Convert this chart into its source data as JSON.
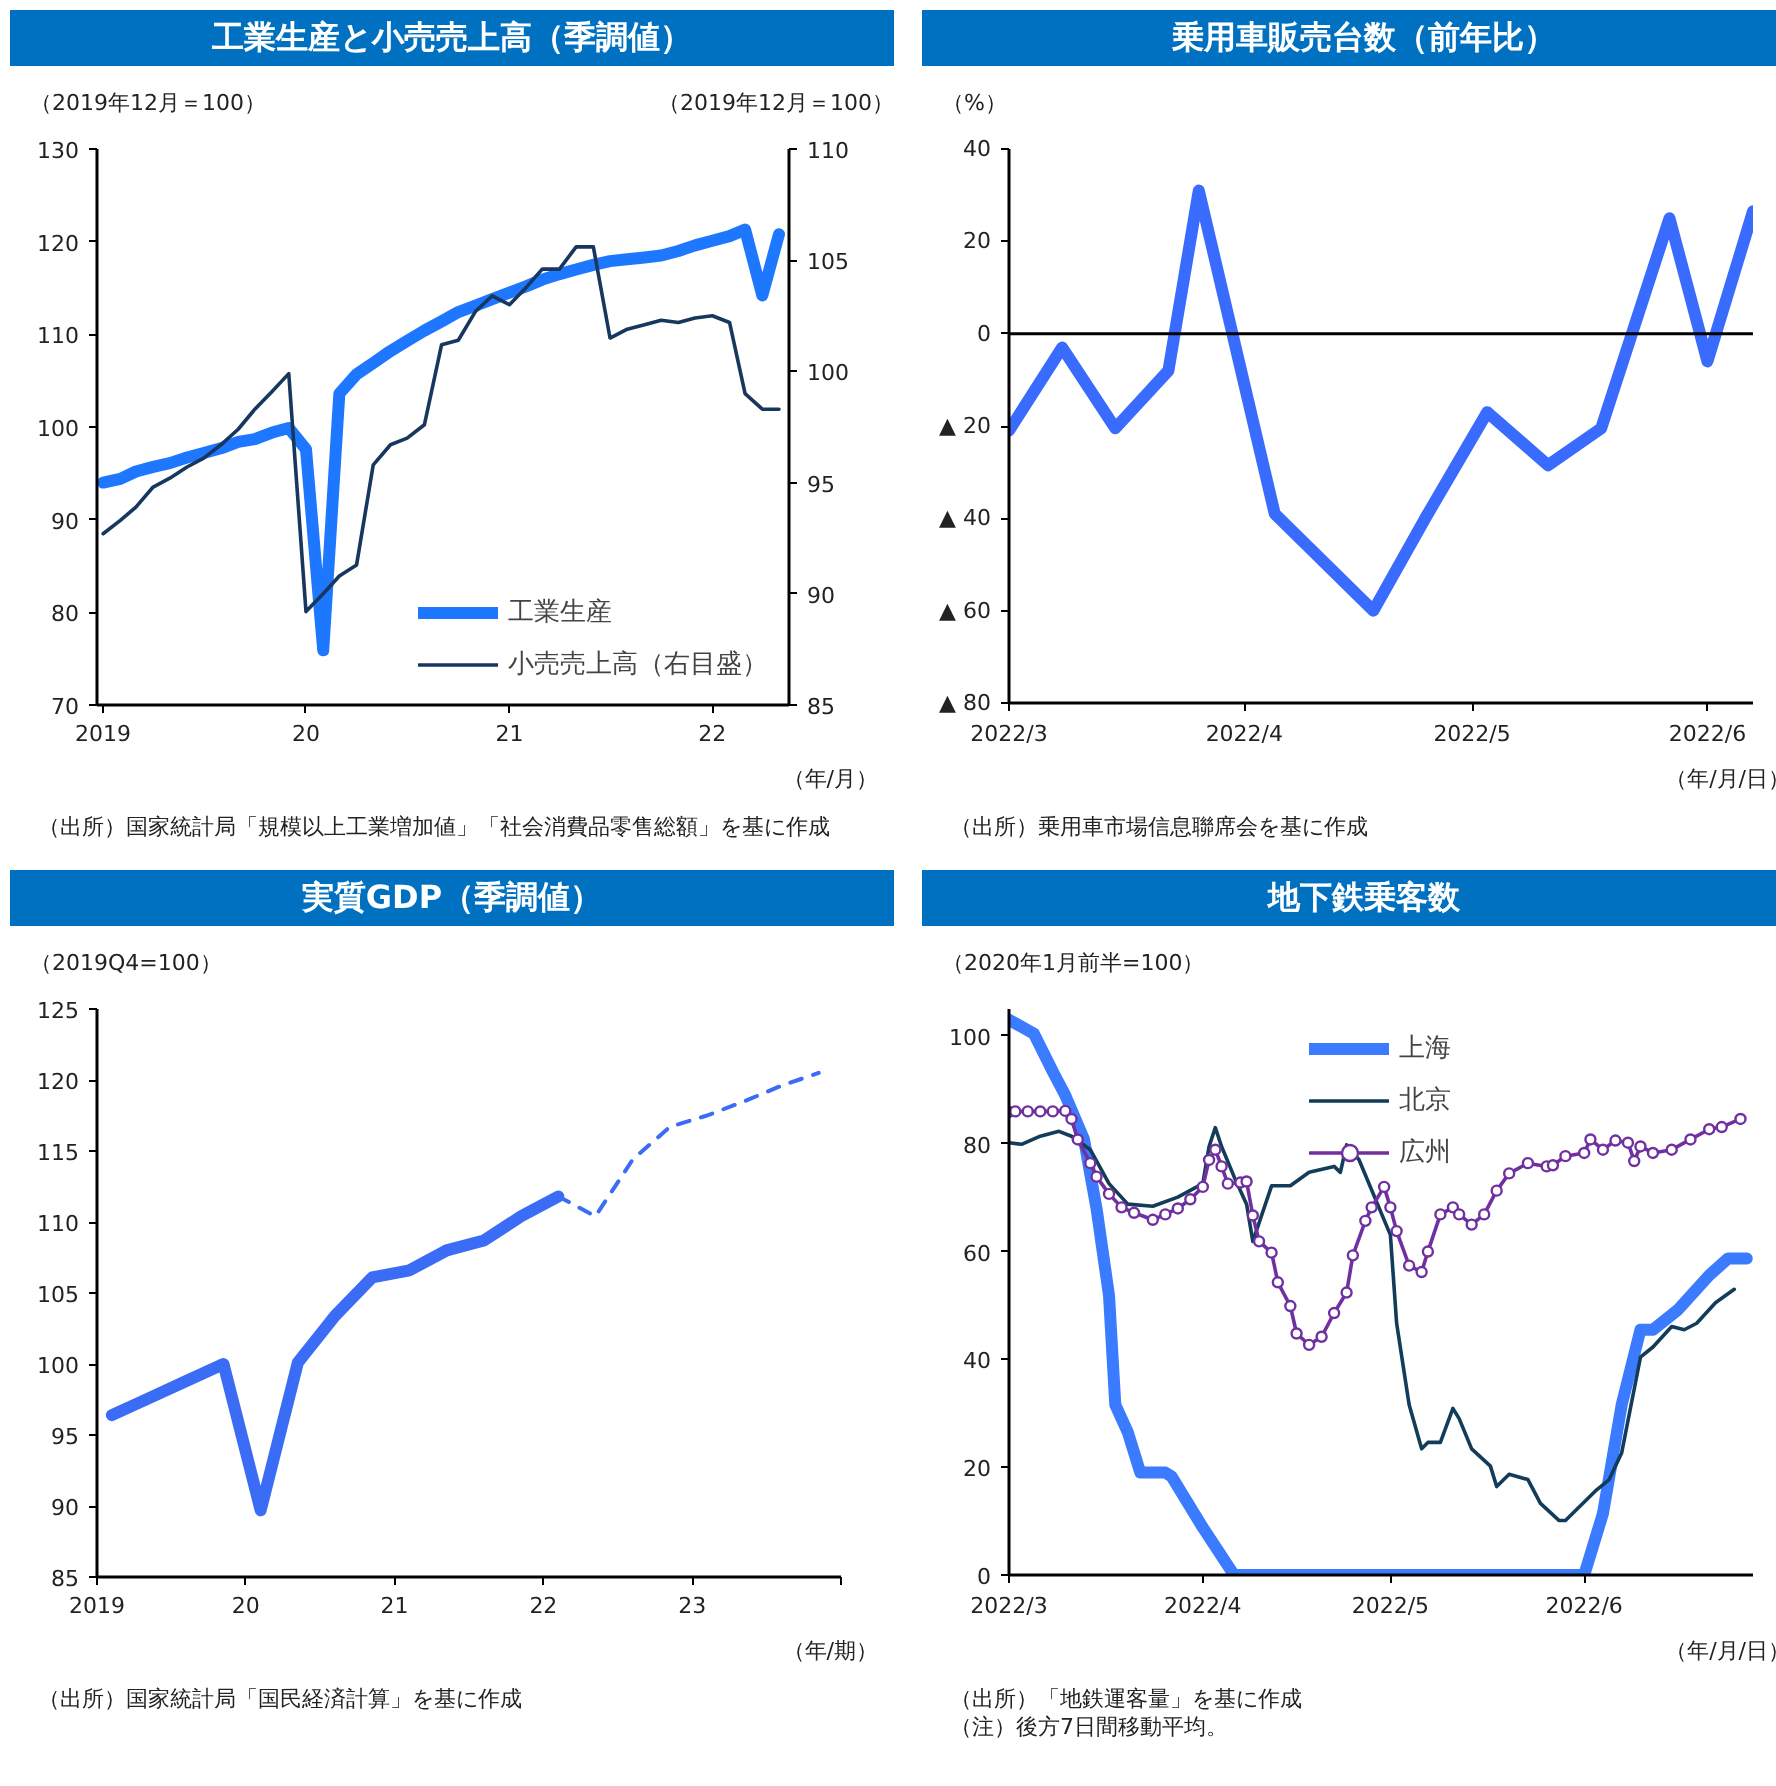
{
  "chart_data": [
    {
      "type": "line",
      "title": "工業生産と小売売上高（季調値）",
      "ylabel": "（2019年12月＝100）",
      "y2label": "（2019年12月＝100）",
      "xlabel": "（年/月）",
      "annotations": [
        "（出所）国家統計局「規模以上工業増加値」「社会消費品零售総額」を基に作成"
      ],
      "x": [
        "2019-01",
        "2019-02",
        "2019-03",
        "2019-04",
        "2019-05",
        "2019-06",
        "2019-07",
        "2019-08",
        "2019-09",
        "2019-10",
        "2019-11",
        "2019-12",
        "2020-01",
        "2020-02",
        "2020-03",
        "2020-04",
        "2020-05",
        "2020-06",
        "2020-07",
        "2020-08",
        "2020-09",
        "2020-10",
        "2020-11",
        "2020-12",
        "2021-01",
        "2021-02",
        "2021-03",
        "2021-04",
        "2021-05",
        "2021-06",
        "2021-07",
        "2021-08",
        "2021-09",
        "2021-10",
        "2021-11",
        "2021-12",
        "2022-01",
        "2022-02",
        "2022-03",
        "2022-04",
        "2022-05"
      ],
      "series": [
        {
          "name": "工業生産",
          "color": "#1e78ff",
          "values": [
            94.0,
            94.4,
            95.2,
            95.7,
            96.1,
            96.7,
            97.2,
            97.7,
            98.4,
            98.7,
            99.4,
            99.9,
            97.6,
            75.9,
            103.6,
            105.7,
            106.9,
            108.2,
            109.3,
            110.4,
            111.4,
            112.4,
            113.1,
            113.8,
            114.5,
            115.2,
            115.9,
            116.5,
            117.0,
            117.5,
            117.9,
            118.1,
            118.3,
            118.5,
            119.0,
            119.6,
            120.1,
            120.6,
            121.3,
            114.2,
            120.8
          ]
        },
        {
          "name": "小売売上高（右目盛）",
          "color": "#17375e",
          "axis": "y2",
          "values": [
            92.7,
            93.3,
            93.9,
            94.8,
            95.2,
            95.7,
            96.1,
            96.7,
            97.4,
            98.3,
            99.1,
            99.9,
            89.2,
            90.0,
            90.8,
            91.3,
            95.8,
            96.7,
            97.0,
            97.6,
            101.2,
            101.4,
            102.7,
            103.4,
            103.0,
            103.8,
            104.6,
            104.6,
            105.6,
            105.6,
            101.5,
            101.9,
            102.1,
            102.3,
            102.2,
            102.4,
            102.5,
            102.2,
            99.0,
            98.3,
            98.3
          ]
        }
      ],
      "xlim": [
        "2018-12-21",
        "2022-05-19"
      ],
      "xticks": [
        {
          "value": "2019-01",
          "label": "2019"
        },
        {
          "value": "2020-01",
          "label": "20"
        },
        {
          "value": "2021-01",
          "label": "21"
        },
        {
          "value": "2022-01",
          "label": "22"
        }
      ],
      "ylim": [
        70,
        130
      ],
      "yticks": [
        70,
        80,
        90,
        100,
        110,
        120,
        130
      ],
      "y2lim": [
        85,
        110
      ],
      "y2ticks": [
        85,
        90,
        95,
        100,
        105,
        110
      ],
      "grid": false,
      "legend": "bottom right"
    },
    {
      "type": "line",
      "title": "乗用車販売台数（前年比）",
      "ylabel": "（%）",
      "xlabel": "（年/月/日）",
      "annotations": [
        "（出所）乗用車市場信息聯席会を基に作成"
      ],
      "x": [
        "2022-03-01",
        "2022-03-08",
        "2022-03-15",
        "2022-03-22",
        "2022-03-26",
        "2022-04-05",
        "2022-04-18",
        "2022-04-25",
        "2022-05-03",
        "2022-05-11",
        "2022-05-18",
        "2022-05-27",
        "2022-06-01",
        "2022-06-07"
      ],
      "series": [
        {
          "color": "#3a6bff",
          "values": [
            -21,
            -3,
            -20.5,
            -8,
            31,
            -39,
            -60,
            -39.5,
            -17,
            -28.5,
            -20.5,
            25,
            -6,
            26.5
          ]
        }
      ],
      "xlim": [
        "2022-03-01",
        "2022-06-07"
      ],
      "xticks": [
        {
          "value": "2022-03-01",
          "label": "2022/3"
        },
        {
          "value": "2022-04-01",
          "label": "2022/4"
        },
        {
          "value": "2022-05-01",
          "label": "2022/5"
        },
        {
          "value": "2022-06-01",
          "label": "2022/6"
        }
      ],
      "ylim": [
        -80,
        40
      ],
      "yticks": [
        {
          "value": -80,
          "label": "▲ 80"
        },
        {
          "value": -60,
          "label": "▲ 60"
        },
        {
          "value": -40,
          "label": "▲ 40"
        },
        {
          "value": -20,
          "label": "▲ 20"
        },
        0,
        20,
        40
      ],
      "ref_lines": [
        {
          "axis": "y",
          "value": 0,
          "color": "#000000"
        }
      ],
      "grid": false
    },
    {
      "type": "line",
      "title": "実質GDP（季調値）",
      "ylabel": "（2019Q4=100）",
      "xlabel": "（年/期）",
      "annotations": [
        "（出所）国家統計局「国民経済計算」を基に作成"
      ],
      "series": [
        {
          "color": "#3b6cf5",
          "x": [
            2019.1,
            2019.35,
            2019.6,
            2019.85,
            2020.1,
            2020.35,
            2020.6,
            2020.85,
            2021.1,
            2021.35,
            2021.6,
            2021.85,
            2022.1
          ],
          "values": [
            96.4,
            97.6,
            98.8,
            100.0,
            89.7,
            100.1,
            103.4,
            106.1,
            106.6,
            108.0,
            108.7,
            110.4,
            111.8
          ]
        },
        {
          "color": "#3b6cf5",
          "line_style": "dashed",
          "x": [
            2022.1,
            2022.35,
            2022.6,
            2022.85,
            2023.1,
            2023.35,
            2023.6,
            2023.85
          ],
          "values": [
            111.8,
            110.4,
            114.4,
            116.7,
            117.5,
            118.5,
            119.6,
            120.5
          ]
        }
      ],
      "xlim": [
        2019,
        2024
      ],
      "xticks": [
        {
          "value": 2019,
          "label": "2019"
        },
        {
          "value": 2020,
          "label": "20"
        },
        {
          "value": 2021,
          "label": "21"
        },
        {
          "value": 2022,
          "label": "22"
        },
        {
          "value": 2023,
          "label": "23"
        },
        {
          "value": 2024,
          "label": null
        }
      ],
      "ylim": [
        85,
        125
      ],
      "yticks": [
        85,
        90,
        95,
        100,
        105,
        110,
        115,
        120,
        125
      ],
      "grid": false
    },
    {
      "type": "line",
      "title": "地下鉄乗客数",
      "ylabel": "（2020年1月前半=100）",
      "xlabel": "（年/月/日）",
      "annotations": [
        "（出所）「地鉄運客量」を基に作成",
        "（注）後方7日間移動平均。"
      ],
      "series": [
        {
          "name": "上海",
          "color": "#3a7bff",
          "x": [
            "2022-03-01",
            "2022-03-05",
            "2022-03-08",
            "2022-03-10",
            "2022-03-13",
            "2022-03-15",
            "2022-03-17",
            "2022-03-18",
            "2022-03-20",
            "2022-03-22",
            "2022-03-26",
            "2022-03-27",
            "2022-04-01",
            "2022-04-06",
            "2022-06-01",
            "2022-06-04",
            "2022-06-07",
            "2022-06-10",
            "2022-06-12",
            "2022-06-16",
            "2022-06-21",
            "2022-06-24",
            "2022-06-27"
          ],
          "values": [
            103,
            100.4,
            93.4,
            89,
            80.8,
            68,
            51.8,
            31.6,
            26.5,
            19,
            19,
            18.3,
            8.8,
            0,
            0,
            11.4,
            31.6,
            45.5,
            45.5,
            49.2,
            55.6,
            58.7,
            58.7
          ]
        },
        {
          "name": "北京",
          "color": "#123c5a",
          "x": [
            "2022-03-01",
            "2022-03-03",
            "2022-03-06",
            "2022-03-09",
            "2022-03-11",
            "2022-03-14",
            "2022-03-17",
            "2022-03-20",
            "2022-03-24",
            "2022-03-28",
            "2022-04-01",
            "2022-04-02",
            "2022-04-03",
            "2022-04-04",
            "2022-04-06",
            "2022-04-08",
            "2022-04-09",
            "2022-04-12",
            "2022-04-15",
            "2022-04-18",
            "2022-04-22",
            "2022-04-23",
            "2022-04-24",
            "2022-04-26",
            "2022-05-01",
            "2022-05-02",
            "2022-05-04",
            "2022-05-06",
            "2022-05-07",
            "2022-05-09",
            "2022-05-11",
            "2022-05-12",
            "2022-05-14",
            "2022-05-17",
            "2022-05-18",
            "2022-05-20",
            "2022-05-23",
            "2022-05-25",
            "2022-05-28",
            "2022-05-29",
            "2022-06-03",
            "2022-06-05",
            "2022-06-07",
            "2022-06-10",
            "2022-06-12",
            "2022-06-15",
            "2022-06-17",
            "2022-06-19",
            "2022-06-22",
            "2022-06-25"
          ],
          "values": [
            80.2,
            79.9,
            81.4,
            82.3,
            81.4,
            78.9,
            72.6,
            68.8,
            68.4,
            70.1,
            72.6,
            79.5,
            83,
            79.5,
            73.9,
            68.8,
            61.9,
            72.2,
            72.2,
            74.7,
            75.8,
            74.7,
            79.8,
            77,
            63.1,
            46.7,
            31.6,
            23.4,
            24.6,
            24.6,
            30.9,
            29,
            23.4,
            20.2,
            16.4,
            18.7,
            17.7,
            13.3,
            10.1,
            10.1,
            15.8,
            17.7,
            22.7,
            40.4,
            42.3,
            46.1,
            45.5,
            46.7,
            50.5,
            53
          ]
        },
        {
          "name": "広州",
          "color": "#7030a0",
          "marker": "circle",
          "x": [
            "2022-03-01",
            "2022-03-02",
            "2022-03-04",
            "2022-03-06",
            "2022-03-08",
            "2022-03-10",
            "2022-03-11",
            "2022-03-12",
            "2022-03-14",
            "2022-03-15",
            "2022-03-17",
            "2022-03-19",
            "2022-03-21",
            "2022-03-24",
            "2022-03-26",
            "2022-03-28",
            "2022-03-30",
            "2022-04-01",
            "2022-04-02",
            "2022-04-03",
            "2022-04-04",
            "2022-04-05",
            "2022-04-07",
            "2022-04-08",
            "2022-04-09",
            "2022-04-10",
            "2022-04-12",
            "2022-04-13",
            "2022-04-15",
            "2022-04-16",
            "2022-04-18",
            "2022-04-20",
            "2022-04-22",
            "2022-04-24",
            "2022-04-25",
            "2022-04-27",
            "2022-04-28",
            "2022-04-30",
            "2022-05-01",
            "2022-05-02",
            "2022-05-04",
            "2022-05-06",
            "2022-05-07",
            "2022-05-09",
            "2022-05-11",
            "2022-05-12",
            "2022-05-14",
            "2022-05-16",
            "2022-05-18",
            "2022-05-20",
            "2022-05-23",
            "2022-05-26",
            "2022-05-27",
            "2022-05-29",
            "2022-06-01",
            "2022-06-02",
            "2022-06-04",
            "2022-06-06",
            "2022-06-08",
            "2022-06-09",
            "2022-06-10",
            "2022-06-12",
            "2022-06-15",
            "2022-06-18",
            "2022-06-21",
            "2022-06-23",
            "2022-06-26"
          ],
          "values": [
            85.9,
            86,
            86,
            86,
            86,
            86.1,
            84.6,
            80.8,
            76.4,
            73.9,
            70.7,
            68.2,
            67.2,
            65.9,
            66.9,
            68,
            69.7,
            72,
            77,
            78.9,
            75.8,
            72.6,
            72.8,
            73,
            66.7,
            61.9,
            59.8,
            54.3,
            49.9,
            44.8,
            42.7,
            44.2,
            48.6,
            52.4,
            59.3,
            65.7,
            68.2,
            72,
            68.2,
            63.8,
            57.4,
            56.2,
            60,
            66.9,
            68.2,
            66.9,
            65,
            66.9,
            71.3,
            74.5,
            76.4,
            75.8,
            76,
            77.7,
            78.3,
            80.8,
            78.9,
            80.6,
            80.2,
            76.8,
            79.5,
            78.3,
            78.9,
            80.8,
            82.7,
            83.1,
            84.6
          ]
        }
      ],
      "xlim": [
        "2022-03-01",
        "2022-06-28"
      ],
      "xticks": [
        {
          "value": "2022-03-01",
          "label": "2022/3"
        },
        {
          "value": "2022-04-01",
          "label": "2022/4"
        },
        {
          "value": "2022-05-01",
          "label": "2022/5"
        },
        {
          "value": "2022-06-01",
          "label": "2022/6"
        }
      ],
      "ylim": [
        0,
        105
      ],
      "yticks": [
        0,
        20,
        40,
        60,
        80,
        100
      ],
      "grid": false,
      "legend": "top"
    }
  ]
}
